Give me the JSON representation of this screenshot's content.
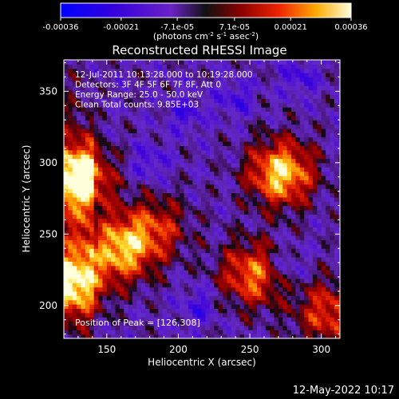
{
  "chart_data": {
    "type": "heatmap",
    "title": "Reconstructed RHESSI Image",
    "xlabel": "Heliocentric X (arcsec)",
    "ylabel": "Heliocentric Y (arcsec)",
    "xlim": [
      120,
      313
    ],
    "ylim": [
      177,
      372
    ],
    "x_ticks": [
      "150",
      "200",
      "250",
      "300"
    ],
    "x_tick_values": [
      150,
      200,
      250,
      300
    ],
    "y_ticks": [
      "200",
      "250",
      "300",
      "350"
    ],
    "y_tick_values": [
      200,
      250,
      300,
      350
    ],
    "colorbar": {
      "range": [
        -0.00036,
        0.00036
      ],
      "tick_labels": [
        "-0.00036",
        "-0.00021",
        "-7.1e-05",
        "7.1e-05",
        "0.00021",
        "0.00036"
      ],
      "tick_values": [
        -0.00036,
        -0.00021,
        -7.1e-05,
        7.1e-05,
        0.00021,
        0.00036
      ],
      "units_main": "(photons cm",
      "units_exp1": "-2",
      "units_mid1": " s",
      "units_exp2": "-1",
      "units_mid2": " asec",
      "units_exp3": "-2",
      "units_end": ")"
    },
    "info_lines": [
      "12-Jul-2011 10:13:28.000 to 10:19:28.000",
      "Detectors: 3F 4F 5F 6F 7F 8F, Att 0",
      "Energy Range: 25.0 - 50.0 keV",
      "Clean     Total counts: 9.85E+03"
    ],
    "peak_label": "Position of Peak = [126,308]",
    "peak": [
      126,
      308
    ],
    "bright_sources": [
      {
        "x": 130,
        "y": 290,
        "value": 0.00033
      },
      {
        "x": 125,
        "y": 215,
        "value": 0.0003
      },
      {
        "x": 160,
        "y": 240,
        "value": 0.00028
      },
      {
        "x": 272,
        "y": 293,
        "value": 0.00032
      },
      {
        "x": 252,
        "y": 222,
        "value": 0.00024
      },
      {
        "x": 305,
        "y": 195,
        "value": 0.0002
      },
      {
        "x": 185,
        "y": 255,
        "value": 0.00016
      }
    ],
    "timestamp": "12-May-2022 10:17"
  }
}
